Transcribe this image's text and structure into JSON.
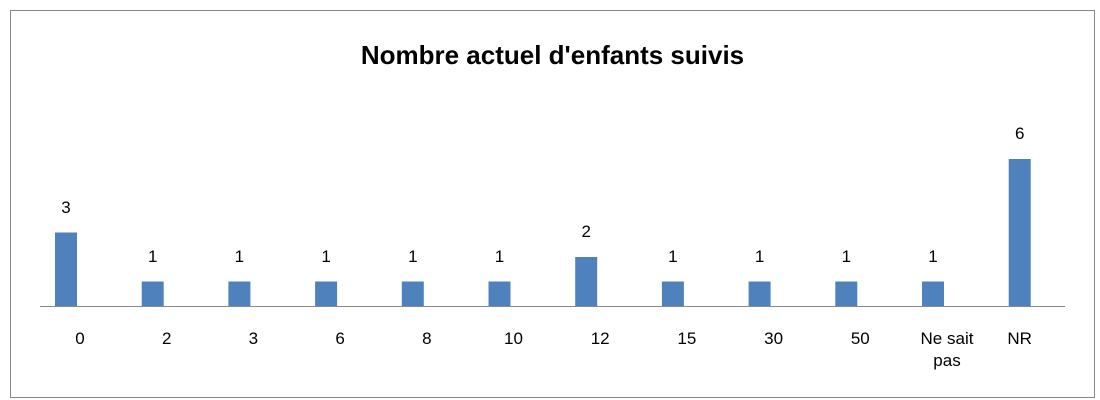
{
  "chart_data": {
    "type": "bar",
    "title": "Nombre actuel d'enfants suivis",
    "categories": [
      "0",
      "2",
      "3",
      "6",
      "8",
      "10",
      "12",
      "15",
      "30",
      "50",
      "Ne sait pas",
      "NR"
    ],
    "values": [
      3,
      1,
      1,
      1,
      1,
      1,
      2,
      1,
      1,
      1,
      1,
      6
    ],
    "color": "#4f81bd"
  }
}
